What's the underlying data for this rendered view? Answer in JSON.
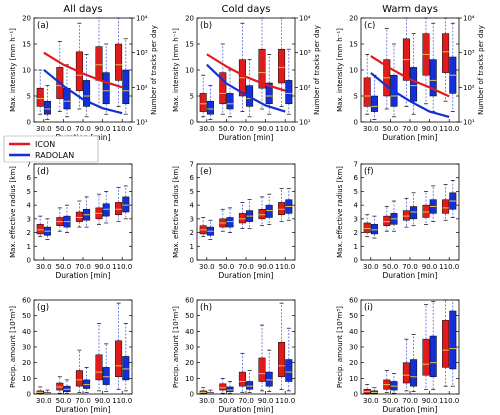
{
  "chart_data": {
    "type": "box",
    "legend": {
      "placement": "inside panel (d), above the boxes",
      "entries": [
        {
          "name": "ICON",
          "color": "#e11b1b"
        },
        {
          "name": "RADOLAN",
          "color": "#1330d8"
        }
      ]
    },
    "colors": {
      "icon": "#e11b1b",
      "radolan": "#1330d8",
      "median": "#e8c24a",
      "whisker": "#5566e0"
    },
    "column_titles": [
      "All days",
      "Cold days",
      "Warm days"
    ],
    "x_tick_labels": [
      "30.0",
      "50.0",
      "70.0",
      "90.0",
      "110.0"
    ],
    "x_values": [
      30,
      50,
      70,
      90,
      110
    ],
    "xlabel": "Duration [min]",
    "rows": [
      {
        "ylabel": "Max. intensity [mm h⁻¹]",
        "ylim": [
          0,
          20
        ],
        "y_ticks": [
          "0",
          "5",
          "10",
          "15",
          "20"
        ],
        "right_axis": {
          "label": "Number of tracks per day",
          "scale": "log",
          "ylim": [
            10,
            10000
          ],
          "ticks": [
            "10¹",
            "10²",
            "10³",
            "10⁴"
          ]
        }
      },
      {
        "ylabel": "Max. effective radius [km]",
        "ylim": [
          0,
          7
        ],
        "y_ticks": [
          "0",
          "1",
          "2",
          "3",
          "4",
          "5",
          "6",
          "7"
        ]
      },
      {
        "ylabel": "Precip. amount [10³m³]",
        "ylim": [
          0,
          60
        ],
        "y_ticks": [
          "0",
          "10",
          "20",
          "30",
          "40",
          "50",
          "60"
        ]
      }
    ],
    "panels": [
      {
        "label": "(a)",
        "row": 0,
        "col": 0,
        "icon": [
          [
            1.5,
            3,
            4.5,
            6.5,
            10
          ],
          [
            2,
            4.5,
            7,
            10.5,
            15.5
          ],
          [
            2.5,
            6,
            9,
            13.5,
            19
          ],
          [
            3,
            8,
            11,
            14.5,
            20
          ],
          [
            3,
            8,
            11,
            15,
            20
          ]
        ],
        "radolan": [
          [
            0.5,
            1.5,
            2.5,
            4,
            7
          ],
          [
            1,
            2.5,
            4,
            6.5,
            11
          ],
          [
            1,
            3,
            5,
            8,
            13
          ],
          [
            1.5,
            3.5,
            6,
            9.5,
            15
          ],
          [
            1.5,
            3.5,
            6,
            10,
            16
          ]
        ],
        "tracks_icon": [
          1000,
          450,
          250,
          150,
          100
        ],
        "tracks_radolan": [
          320,
          110,
          45,
          25,
          18
        ]
      },
      {
        "label": "(b)",
        "row": 0,
        "col": 1,
        "icon": [
          [
            1,
            2,
            3.5,
            5.5,
            9
          ],
          [
            1.5,
            3.5,
            5.5,
            9.5,
            15
          ],
          [
            2,
            5,
            8.5,
            12,
            19
          ],
          [
            2.5,
            6.5,
            9.5,
            14,
            20
          ],
          [
            3,
            7.5,
            10.5,
            14,
            20
          ]
        ],
        "radolan": [
          [
            0.5,
            1.5,
            2.5,
            4,
            7
          ],
          [
            1,
            2.5,
            3.5,
            5.5,
            10
          ],
          [
            1,
            3,
            4.5,
            7,
            12
          ],
          [
            1.5,
            3.5,
            5,
            7.5,
            13
          ],
          [
            1.5,
            3.5,
            5.5,
            8,
            14
          ]
        ],
        "tracks_icon": [
          900,
          400,
          200,
          120,
          80
        ],
        "tracks_radolan": [
          450,
          130,
          60,
          30,
          20
        ]
      },
      {
        "label": "(c)",
        "row": 0,
        "col": 2,
        "icon": [
          [
            1.5,
            3,
            5,
            8.5,
            13
          ],
          [
            2.5,
            5,
            8.5,
            12,
            18
          ],
          [
            3,
            8,
            12,
            16,
            20
          ],
          [
            3.5,
            9,
            13,
            17,
            20
          ],
          [
            4,
            9.5,
            13.5,
            17,
            20
          ]
        ],
        "radolan": [
          [
            0.5,
            2,
            3,
            5,
            9
          ],
          [
            1,
            3,
            5,
            9,
            15
          ],
          [
            1.5,
            4,
            7,
            10.5,
            17
          ],
          [
            2,
            5,
            8,
            12,
            19
          ],
          [
            2,
            5.5,
            9,
            12.5,
            19
          ]
        ],
        "tracks_icon": [
          800,
          350,
          170,
          100,
          55
        ],
        "tracks_radolan": [
          260,
          90,
          40,
          20,
          14
        ]
      },
      {
        "label": "(d)",
        "row": 1,
        "col": 0,
        "icon": [
          [
            1.7,
            1.9,
            2.2,
            2.6,
            3.2
          ],
          [
            2.1,
            2.5,
            2.8,
            3.1,
            3.8
          ],
          [
            2.4,
            2.8,
            3.1,
            3.5,
            4.3
          ],
          [
            2.6,
            3.0,
            3.4,
            3.8,
            4.8
          ],
          [
            2.8,
            3.3,
            3.7,
            4.2,
            5.3
          ]
        ],
        "radolan": [
          [
            1.5,
            1.8,
            2.1,
            2.4,
            3.0
          ],
          [
            2.0,
            2.4,
            2.8,
            3.2,
            4.0
          ],
          [
            2.4,
            2.9,
            3.3,
            3.7,
            4.6
          ],
          [
            2.7,
            3.2,
            3.7,
            4.1,
            5.0
          ],
          [
            3.0,
            3.5,
            4.0,
            4.6,
            5.4
          ]
        ]
      },
      {
        "label": "(e)",
        "row": 1,
        "col": 1,
        "icon": [
          [
            1.7,
            1.9,
            2.2,
            2.5,
            3.1
          ],
          [
            2.1,
            2.4,
            2.7,
            3.0,
            3.7
          ],
          [
            2.3,
            2.7,
            3.0,
            3.4,
            4.2
          ],
          [
            2.5,
            3.0,
            3.3,
            3.7,
            4.6
          ],
          [
            2.8,
            3.3,
            3.7,
            4.2,
            5.2
          ]
        ],
        "radolan": [
          [
            1.5,
            1.8,
            2.1,
            2.4,
            2.9
          ],
          [
            2.0,
            2.4,
            2.8,
            3.1,
            3.8
          ],
          [
            2.3,
            2.8,
            3.2,
            3.6,
            4.4
          ],
          [
            2.6,
            3.1,
            3.6,
            4.0,
            4.8
          ],
          [
            2.9,
            3.4,
            3.9,
            4.4,
            5.2
          ]
        ]
      },
      {
        "label": "(f)",
        "row": 1,
        "col": 2,
        "icon": [
          [
            1.7,
            2.0,
            2.3,
            2.7,
            3.3
          ],
          [
            2.1,
            2.5,
            2.8,
            3.2,
            3.9
          ],
          [
            2.4,
            2.9,
            3.2,
            3.6,
            4.5
          ],
          [
            2.6,
            3.1,
            3.5,
            4.0,
            5.0
          ],
          [
            2.9,
            3.4,
            3.8,
            4.4,
            5.5
          ]
        ],
        "radolan": [
          [
            1.6,
            1.9,
            2.2,
            2.6,
            3.2
          ],
          [
            2.1,
            2.6,
            3.0,
            3.4,
            4.3
          ],
          [
            2.5,
            3.0,
            3.5,
            3.9,
            4.9
          ],
          [
            2.8,
            3.4,
            3.9,
            4.4,
            5.4
          ],
          [
            3.1,
            3.7,
            4.3,
            4.9,
            5.8
          ]
        ]
      },
      {
        "label": "(g)",
        "row": 2,
        "col": 0,
        "icon": [
          [
            0,
            0.5,
            1,
            2,
            4.5
          ],
          [
            0.5,
            2.5,
            4.5,
            7,
            11
          ],
          [
            1,
            5,
            9,
            15,
            28
          ],
          [
            2,
            9,
            14,
            25,
            45
          ],
          [
            3,
            11,
            18,
            34,
            58
          ]
        ],
        "radolan": [
          [
            0,
            0.2,
            0.5,
            1,
            2.5
          ],
          [
            0.3,
            1.5,
            3,
            5,
            9
          ],
          [
            1,
            3.5,
            6,
            9,
            17
          ],
          [
            1.5,
            6,
            11,
            17,
            32
          ],
          [
            2,
            9,
            16,
            24,
            45
          ]
        ]
      },
      {
        "label": "(h)",
        "row": 2,
        "col": 1,
        "icon": [
          [
            0,
            0.5,
            1,
            2,
            4
          ],
          [
            0.5,
            2.5,
            4,
            6.5,
            10
          ],
          [
            1,
            5,
            8,
            14,
            26
          ],
          [
            2,
            8,
            13,
            23,
            44
          ],
          [
            3,
            11,
            18,
            33,
            58
          ]
        ],
        "radolan": [
          [
            0,
            0.2,
            0.5,
            1,
            2.5
          ],
          [
            0.3,
            1.5,
            2.5,
            4.5,
            8
          ],
          [
            1,
            3,
            5,
            8,
            15
          ],
          [
            1.5,
            5,
            9,
            14,
            28
          ],
          [
            2,
            8,
            14,
            22,
            42
          ]
        ]
      },
      {
        "label": "(i)",
        "row": 2,
        "col": 2,
        "icon": [
          [
            0,
            0.5,
            1.5,
            3,
            6
          ],
          [
            1,
            3,
            6,
            9,
            15
          ],
          [
            2,
            7,
            12,
            20,
            35
          ],
          [
            3,
            12,
            19,
            35,
            57
          ],
          [
            5,
            17,
            28,
            47,
            60
          ]
        ],
        "radolan": [
          [
            0,
            0.3,
            1,
            2,
            4
          ],
          [
            0.5,
            2.5,
            5,
            8,
            13
          ],
          [
            1.5,
            5,
            11,
            22,
            38
          ],
          [
            3,
            11,
            20,
            37,
            59
          ],
          [
            5,
            16,
            29,
            53,
            60
          ]
        ]
      }
    ]
  }
}
